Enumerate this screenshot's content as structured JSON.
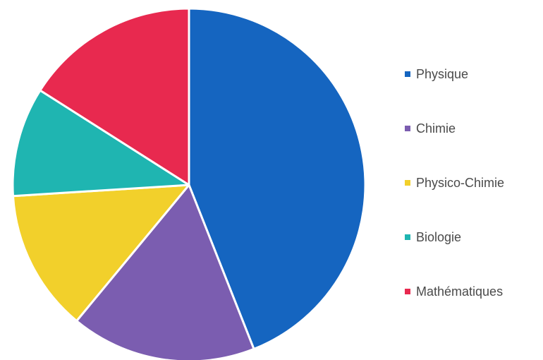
{
  "chart_data": {
    "type": "pie",
    "title": "",
    "legend_position": "right",
    "slices": [
      {
        "label": "Physique",
        "value": 44,
        "color": "#1565c0"
      },
      {
        "label": "Chimie",
        "value": 17,
        "color": "#7b5db0"
      },
      {
        "label": "Physico-Chimie",
        "value": 13,
        "color": "#f2d02b"
      },
      {
        "label": "Biologie",
        "value": 10,
        "color": "#1fb5b1"
      },
      {
        "label": "Mathématiques",
        "value": 16,
        "color": "#e8294f"
      }
    ]
  }
}
